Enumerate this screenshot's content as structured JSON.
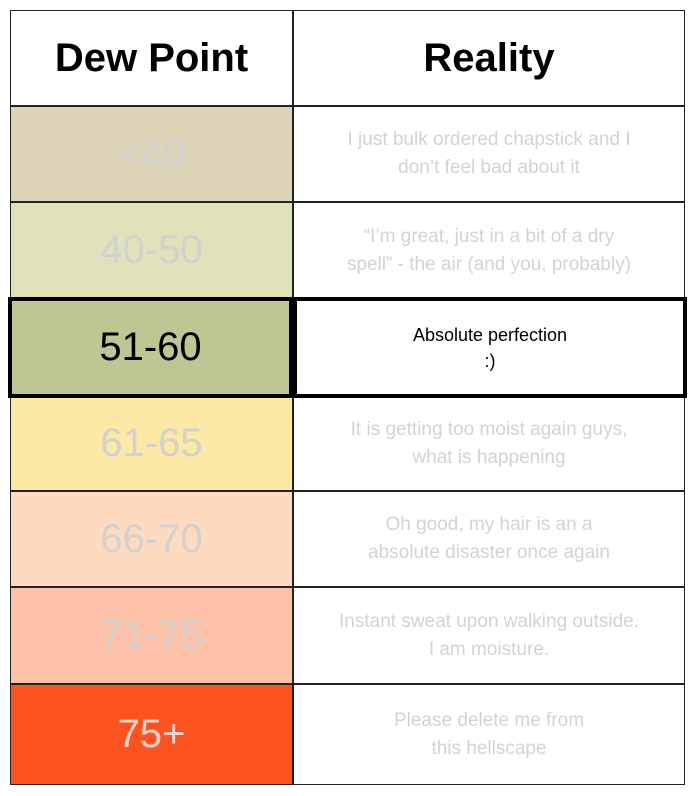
{
  "headers": {
    "dew_point": "Dew Point",
    "reality": "Reality"
  },
  "rows": [
    {
      "range": "<40",
      "reality": "I just bulk ordered chapstick and I\ndon’t feel bad about it",
      "color": "#ddd3b7",
      "highlighted": false
    },
    {
      "range": "40-50",
      "reality": "“I’m great, just in a bit of a dry\nspell” - the air (and you, probably)",
      "color": "#dfe1b9",
      "highlighted": false
    },
    {
      "range": "51-60",
      "reality": "Absolute perfection\n:)",
      "color": "#bec793",
      "highlighted": true
    },
    {
      "range": "61-65",
      "reality": "It is getting too moist again guys,\nwhat is happening",
      "color": "#fce9a6",
      "highlighted": false
    },
    {
      "range": "66-70",
      "reality": "Oh good, my hair is an a\nabsolute disaster once again",
      "color": "#fedbc0",
      "highlighted": false
    },
    {
      "range": "71-75",
      "reality": "Instant sweat upon walking outside.\nI am moisture.",
      "color": "#fec2a8",
      "highlighted": false
    },
    {
      "range": "75+",
      "reality": "Please delete me from\nthis hellscape",
      "color": "#fe5220",
      "highlighted": false
    }
  ]
}
